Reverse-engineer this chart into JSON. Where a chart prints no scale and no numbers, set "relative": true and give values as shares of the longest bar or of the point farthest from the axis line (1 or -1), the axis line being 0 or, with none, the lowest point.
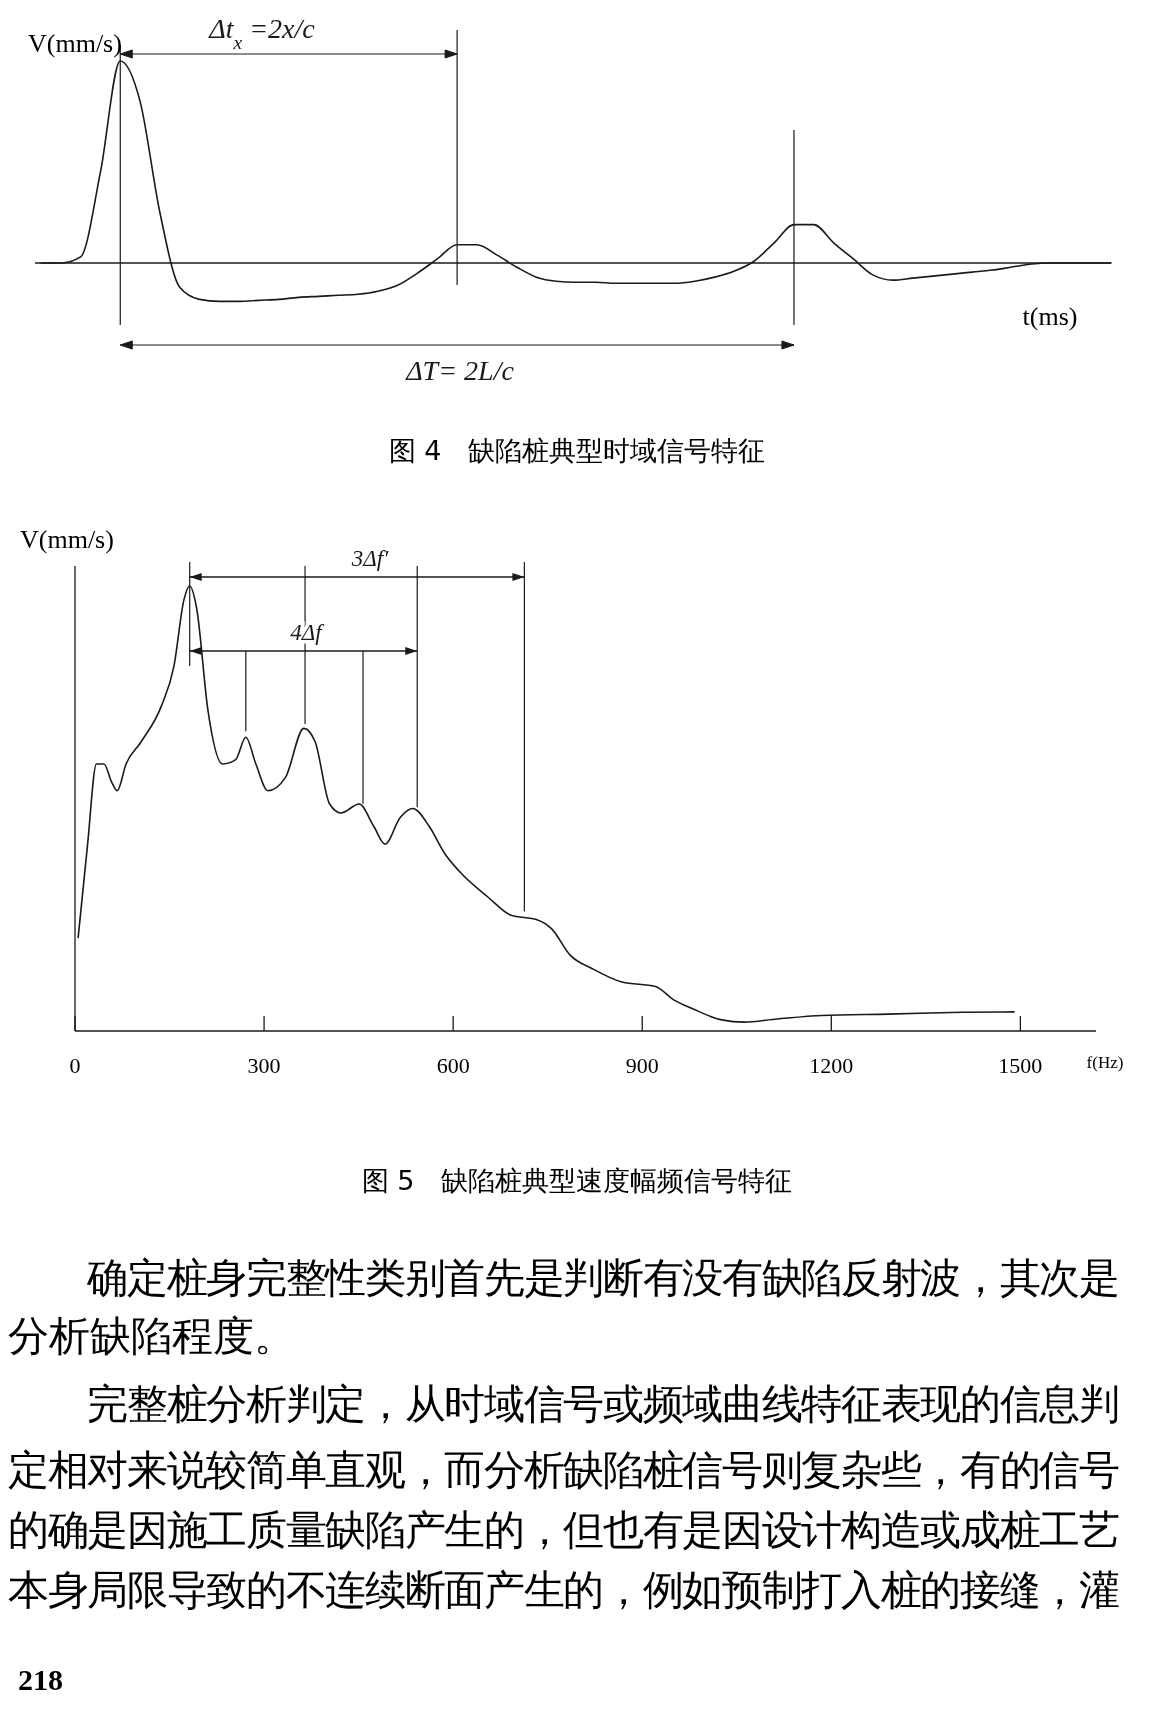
{
  "chart_data": [
    {
      "type": "line",
      "relative": true,
      "title": "图 4　缺陷桩典型时域信号特征",
      "xlabel": "t(ms)",
      "ylabel": "V(mm/s)",
      "tick_labels": false,
      "categories": [
        null,
        null,
        null,
        null,
        null,
        null,
        null,
        null,
        null,
        null,
        null,
        null,
        null,
        null,
        null,
        null,
        null,
        null,
        null,
        null,
        null,
        null,
        null,
        null,
        null,
        null,
        null,
        null,
        null,
        null,
        null,
        null,
        null,
        null,
        null,
        null,
        null,
        null,
        null,
        null,
        null,
        null,
        null,
        null,
        null,
        null,
        null,
        null,
        null,
        null,
        null,
        null,
        null,
        null,
        null
      ],
      "series": [
        {
          "color": "#1a1a1a",
          "values": [
            0,
            0,
            0.03,
            0.45,
            1,
            0.8,
            0.25,
            -0.12,
            -0.18,
            -0.19,
            -0.19,
            -0.185,
            -0.18,
            -0.17,
            -0.165,
            -0.16,
            -0.155,
            -0.14,
            -0.11,
            -0.05,
            0.02,
            0.09,
            0.09,
            0.04,
            -0.02,
            -0.07,
            -0.09,
            -0.095,
            -0.095,
            -0.1,
            -0.1,
            -0.1,
            -0.1,
            -0.09,
            -0.07,
            -0.04,
            0.01,
            0.1,
            0.19,
            0.19,
            0.1,
            0.02,
            -0.06,
            -0.085,
            -0.075,
            -0.065,
            -0.055,
            -0.045,
            -0.035,
            -0.02,
            -0.005,
            0,
            0,
            0,
            0
          ]
        }
      ],
      "annotations": [
        "Δt$_{x}$ =2x/c",
        "ΔT= 2L/c"
      ]
    },
    {
      "type": "line",
      "relative": true,
      "title": "图 5　缺陷桩典型速度幅频信号特征",
      "xlabel": "f(Hz)",
      "ylabel": "V(mm/s)",
      "tick_labels": "x",
      "xlim": [
        0,
        1620
      ],
      "xticks": [
        0,
        300,
        600,
        900,
        1200,
        1500
      ],
      "series": [
        {
          "color": "#1a1a1a",
          "x": [
            5,
            20,
            34,
            46,
            58,
            67,
            81,
            105,
            137,
            157,
            173,
            182,
            193,
            211,
            234,
            255,
            271,
            287,
            306,
            334,
            363,
            381,
            404,
            422,
            451,
            474,
            492,
            516,
            536,
            562,
            586,
            609,
            656,
            692,
            733,
            756,
            786,
            821,
            868,
            921,
            950,
            980,
            1026,
            1062,
            1114,
            1185,
            1291,
            1408,
            1490
          ],
          "values": [
            0.21,
            0.42,
            0.6,
            0.6,
            0.56,
            0.54,
            0.6,
            0.65,
            0.73,
            0.82,
            0.97,
            1,
            0.95,
            0.72,
            0.6,
            0.61,
            0.66,
            0.6,
            0.54,
            0.57,
            0.68,
            0.65,
            0.51,
            0.49,
            0.51,
            0.46,
            0.42,
            0.48,
            0.5,
            0.46,
            0.4,
            0.36,
            0.3,
            0.26,
            0.25,
            0.23,
            0.17,
            0.14,
            0.11,
            0.1,
            0.07,
            0.05,
            0.025,
            0.02,
            0.027,
            0.035,
            0.038,
            0.042,
            0.043
          ]
        }
      ],
      "ref_lines": [
        {
          "axis": "x",
          "value": 182,
          "color": "#1a1a1a"
        },
        {
          "axis": "x",
          "value": 271,
          "color": "#1a1a1a"
        },
        {
          "axis": "x",
          "value": 365,
          "color": "#1a1a1a"
        },
        {
          "axis": "x",
          "value": 457,
          "color": "#1a1a1a"
        },
        {
          "axis": "x",
          "value": 543,
          "color": "#1a1a1a"
        },
        {
          "axis": "x",
          "value": 713,
          "color": "#1a1a1a"
        }
      ],
      "annotations": [
        "3Δf′",
        "4Δf",
        "　　确定桩身完整性类别首先是判断有没有缺陷反射波，其次是",
        "分析缺陷程度。",
        "　　完整桩分析判定，从时域信号或频域曲线特征表现的信息判",
        "定相对来说较简单直观，而分析缺陷桩信号则复杂些，有的信号",
        "的确是因施工质量缺陷产生的，但也有是因设计构造或成桩工艺",
        "本身局限导致的不连续断面产生的，例如预制打入桩的接缝，灌",
        "218"
      ]
    }
  ]
}
